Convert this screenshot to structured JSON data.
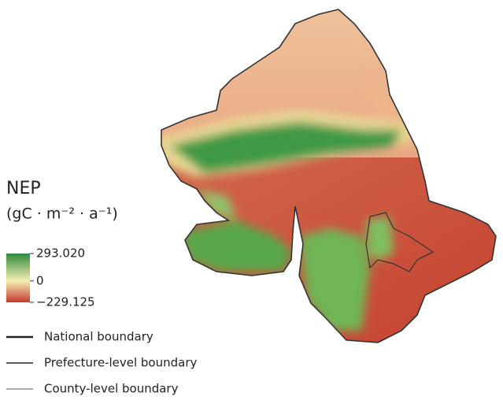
{
  "legend": {
    "title": "NEP",
    "unit": "(gC · m⁻² · a⁻¹)",
    "color_scale": {
      "ticks": [
        {
          "value": 293.02,
          "label": "293.020"
        },
        0,
        {
          "value": -229.125,
          "label": "−229.125"
        }
      ],
      "colors": [
        "#2f8a3b",
        "#f6eeb2",
        "#c23a2e"
      ]
    },
    "boundaries": [
      "National boundary",
      "Prefecture-level boundary",
      "County-level boundary"
    ]
  }
}
